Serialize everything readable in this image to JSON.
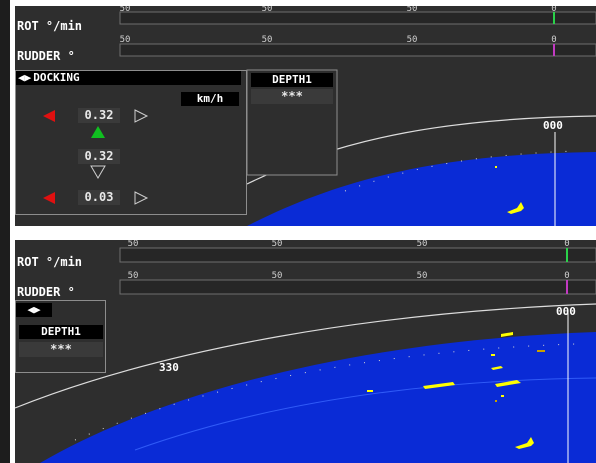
{
  "colors": {
    "panel_bg": "#2e2e2e",
    "sea": "#0a2bd6",
    "target": "#ffff00",
    "arrow_red": "#e01010",
    "arrow_green": "#10c020",
    "heading_line": "#ffffff"
  },
  "rot_scale_ticks": [
    "50",
    "50",
    "50",
    "0"
  ],
  "rudder_scale_ticks": [
    "50",
    "50",
    "50",
    "0"
  ],
  "view1": {
    "rot_label": "ROT °/min",
    "rudder_label": "RUDDER °",
    "docking": {
      "title": "DOCKING",
      "unit": "km/h",
      "top_value": "0.32",
      "mid_value": "0.32",
      "bottom_value": "0.03"
    },
    "depth": {
      "label": "DEPTH1",
      "value": "***"
    },
    "heading": "000"
  },
  "view2": {
    "rot_label": "ROT °/min",
    "rudder_label": "RUDDER °",
    "depth": {
      "label": "DEPTH1",
      "value": "***"
    },
    "heading": "000",
    "bearing_label": "330"
  }
}
